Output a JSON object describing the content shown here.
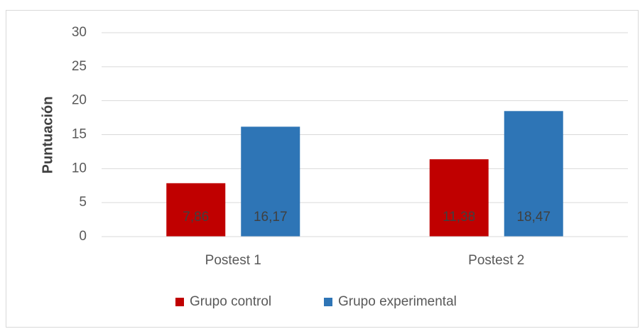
{
  "chart_data": {
    "type": "bar",
    "ylabel": "Puntuación",
    "categories": [
      "Postest 1",
      "Postest 2"
    ],
    "series": [
      {
        "name": "Grupo control",
        "color": "#c00000",
        "values": [
          7.86,
          11.38
        ],
        "value_labels": [
          "7,86",
          "11,38"
        ]
      },
      {
        "name": "Grupo experimental",
        "color": "#2e75b6",
        "values": [
          16.17,
          18.47
        ],
        "value_labels": [
          "16,17",
          "18,47"
        ]
      }
    ],
    "ylim": [
      0,
      30
    ],
    "yticks": [
      0,
      5,
      10,
      15,
      20,
      25,
      30
    ],
    "grid": true,
    "legend": "bottom"
  }
}
